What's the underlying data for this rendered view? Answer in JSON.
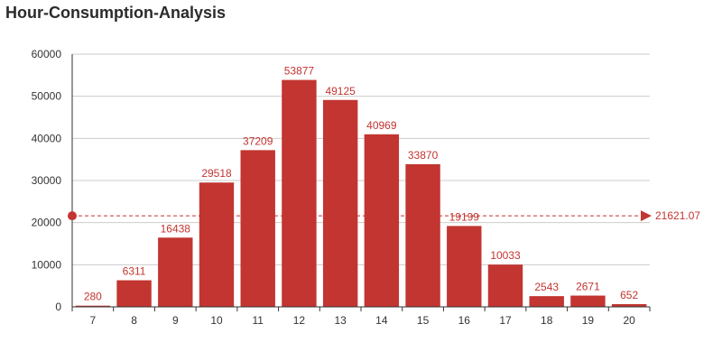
{
  "title": "Hour-Consumption-Analysis",
  "colors": {
    "bar": "#c23531",
    "label": "#c23531",
    "axis": "#333333",
    "grid": "#cccccc",
    "mean_line": "#c23531"
  },
  "chart_data": {
    "type": "bar",
    "title": "Hour-Consumption-Analysis",
    "xlabel": "",
    "ylabel": "",
    "categories": [
      "7",
      "8",
      "9",
      "10",
      "11",
      "12",
      "13",
      "14",
      "15",
      "16",
      "17",
      "18",
      "19",
      "20"
    ],
    "values": [
      280,
      6311,
      16438,
      29518,
      37209,
      53877,
      49125,
      40969,
      33870,
      19199,
      10033,
      2543,
      2671,
      652
    ],
    "ylim": [
      0,
      60000
    ],
    "yticks": [
      "0",
      "10000",
      "20000",
      "30000",
      "40000",
      "50000",
      "60000"
    ],
    "grid": true,
    "data_labels": true,
    "mark_line": {
      "type": "average",
      "value": 21621.07,
      "label": "21621.07"
    }
  }
}
